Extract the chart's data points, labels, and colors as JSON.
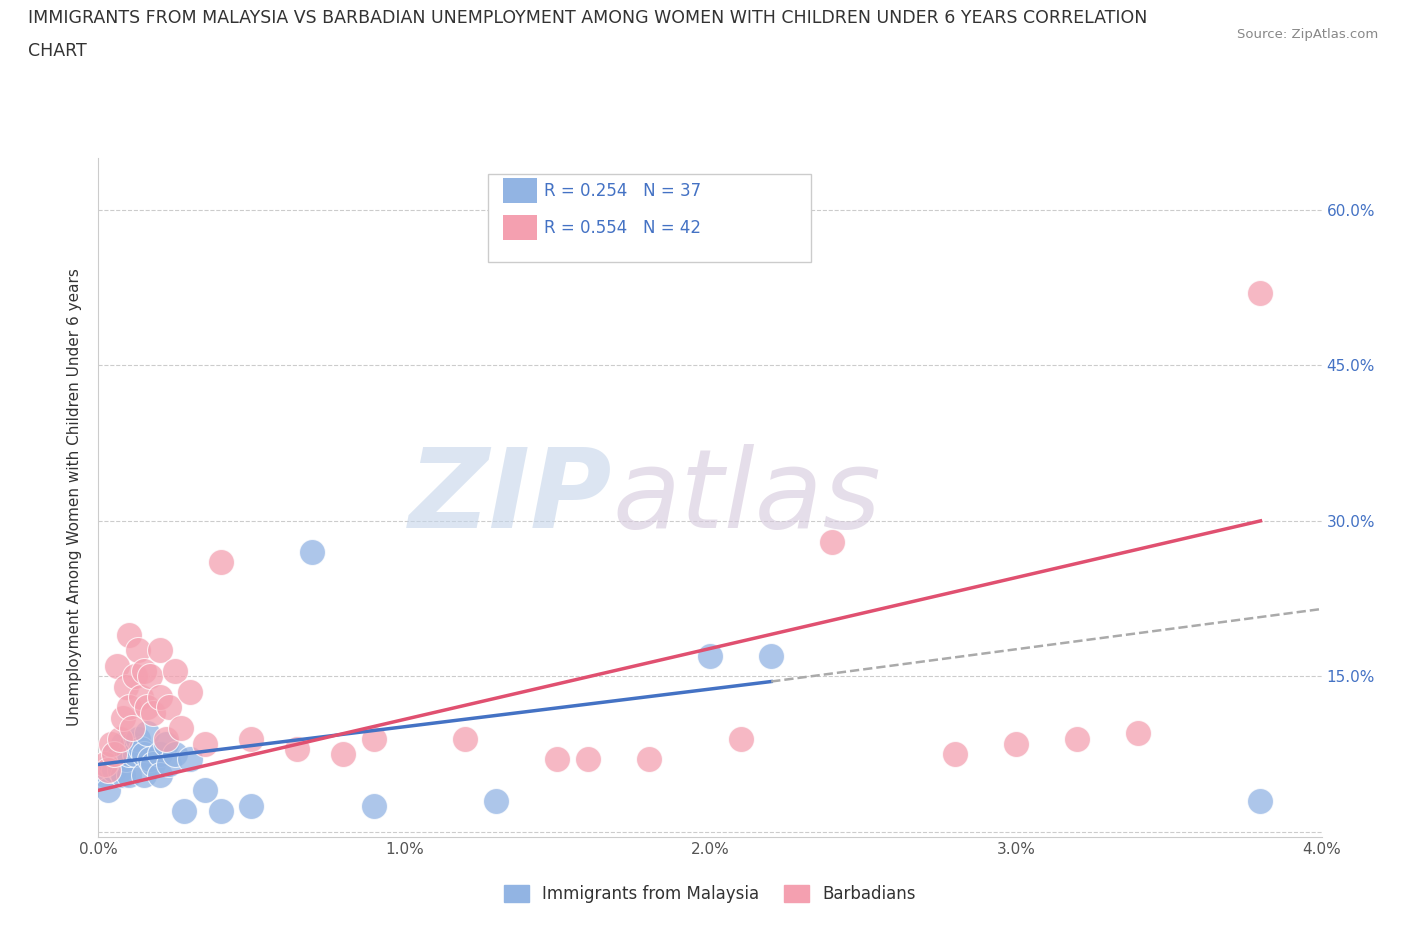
{
  "title_line1": "IMMIGRANTS FROM MALAYSIA VS BARBADIAN UNEMPLOYMENT AMONG WOMEN WITH CHILDREN UNDER 6 YEARS CORRELATION",
  "title_line2": "CHART",
  "source": "Source: ZipAtlas.com",
  "ylabel": "Unemployment Among Women with Children Under 6 years",
  "xlim": [
    0.0,
    0.04
  ],
  "ylim": [
    -0.005,
    0.65
  ],
  "xticks": [
    0.0,
    0.005,
    0.01,
    0.015,
    0.02,
    0.025,
    0.03,
    0.035,
    0.04
  ],
  "xticklabels": [
    "0.0%",
    "",
    "1.0%",
    "",
    "2.0%",
    "",
    "3.0%",
    "",
    "4.0%"
  ],
  "yticks": [
    0.0,
    0.15,
    0.3,
    0.45,
    0.6
  ],
  "yticklabels": [
    "",
    "15.0%",
    "30.0%",
    "45.0%",
    "60.0%"
  ],
  "watermark_zip": "ZIP",
  "watermark_atlas": "atlas",
  "legend_r1": "R = 0.254   N = 37",
  "legend_r2": "R = 0.554   N = 42",
  "legend_label1": "Immigrants from Malaysia",
  "legend_label2": "Barbadians",
  "color_blue": "#92b4e3",
  "color_blue_dark": "#4472c4",
  "color_pink": "#f4a0b0",
  "color_pink_dark": "#e05070",
  "color_blue_text": "#4472c4",
  "blue_scatter_x": [
    0.0002,
    0.0003,
    0.0004,
    0.0005,
    0.0005,
    0.0006,
    0.0007,
    0.0008,
    0.0008,
    0.0009,
    0.001,
    0.001,
    0.0011,
    0.0012,
    0.0013,
    0.0014,
    0.0015,
    0.0015,
    0.0016,
    0.0017,
    0.0018,
    0.002,
    0.002,
    0.0022,
    0.0023,
    0.0025,
    0.0028,
    0.003,
    0.0035,
    0.004,
    0.005,
    0.007,
    0.009,
    0.013,
    0.02,
    0.022,
    0.038
  ],
  "blue_scatter_y": [
    0.055,
    0.04,
    0.065,
    0.06,
    0.075,
    0.07,
    0.06,
    0.055,
    0.085,
    0.07,
    0.055,
    0.075,
    0.085,
    0.075,
    0.09,
    0.08,
    0.075,
    0.055,
    0.095,
    0.07,
    0.065,
    0.075,
    0.055,
    0.085,
    0.065,
    0.075,
    0.02,
    0.07,
    0.04,
    0.02,
    0.025,
    0.27,
    0.025,
    0.03,
    0.17,
    0.17,
    0.03
  ],
  "pink_scatter_x": [
    0.0002,
    0.0003,
    0.0004,
    0.0005,
    0.0006,
    0.0007,
    0.0008,
    0.0009,
    0.001,
    0.001,
    0.0011,
    0.0012,
    0.0013,
    0.0014,
    0.0015,
    0.0016,
    0.0017,
    0.0018,
    0.002,
    0.002,
    0.0022,
    0.0023,
    0.0025,
    0.0027,
    0.003,
    0.0035,
    0.004,
    0.005,
    0.0065,
    0.008,
    0.009,
    0.012,
    0.015,
    0.016,
    0.018,
    0.021,
    0.024,
    0.028,
    0.03,
    0.032,
    0.034,
    0.038
  ],
  "pink_scatter_y": [
    0.065,
    0.06,
    0.085,
    0.075,
    0.16,
    0.09,
    0.11,
    0.14,
    0.12,
    0.19,
    0.1,
    0.15,
    0.175,
    0.13,
    0.155,
    0.12,
    0.15,
    0.115,
    0.175,
    0.13,
    0.09,
    0.12,
    0.155,
    0.1,
    0.135,
    0.085,
    0.26,
    0.09,
    0.08,
    0.075,
    0.09,
    0.09,
    0.07,
    0.07,
    0.07,
    0.09,
    0.28,
    0.075,
    0.085,
    0.09,
    0.095,
    0.52
  ],
  "blue_trend_x": [
    0.0,
    0.022
  ],
  "blue_trend_y": [
    0.065,
    0.145
  ],
  "dash_trend_x": [
    0.022,
    0.04
  ],
  "dash_trend_y": [
    0.145,
    0.215
  ],
  "pink_trend_x": [
    0.0,
    0.038
  ],
  "pink_trend_y": [
    0.04,
    0.3
  ],
  "grid_color": "#cccccc",
  "background_color": "#ffffff"
}
